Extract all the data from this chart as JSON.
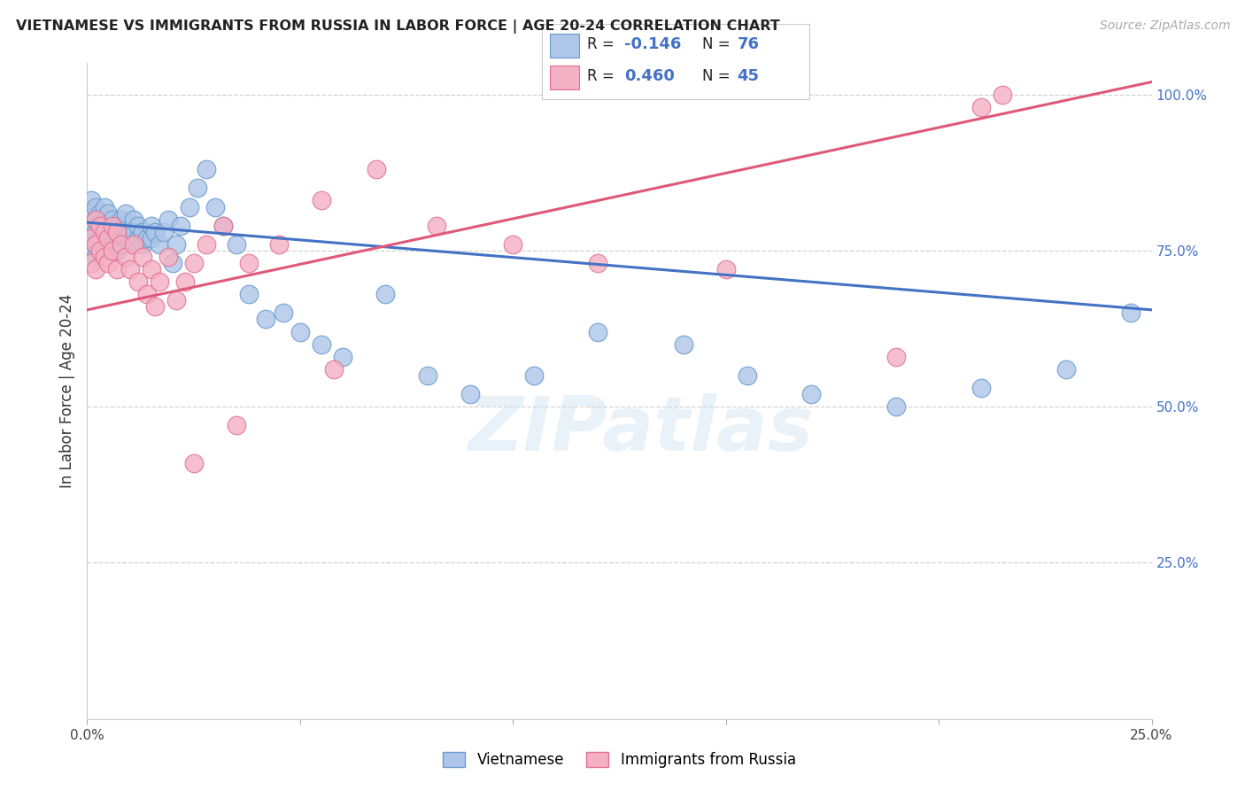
{
  "title": "VIETNAMESE VS IMMIGRANTS FROM RUSSIA IN LABOR FORCE | AGE 20-24 CORRELATION CHART",
  "source": "Source: ZipAtlas.com",
  "ylabel": "In Labor Force | Age 20-24",
  "x_min": 0.0,
  "x_max": 0.25,
  "y_min": 0.0,
  "y_max": 1.05,
  "grid_color": "#cccccc",
  "background_color": "#ffffff",
  "vietnamese_color": "#aec6e8",
  "russian_color": "#f4b0c4",
  "vietnamese_edge": "#6699cc",
  "russian_edge": "#e07090",
  "trend_blue": "#4472c4",
  "trend_pink": "#e05878",
  "legend_label_blue": "Vietnamese",
  "legend_label_pink": "Immigrants from Russia",
  "R_blue": -0.146,
  "N_blue": 76,
  "R_pink": 0.46,
  "N_pink": 45,
  "watermark": "ZIPatlas",
  "viet_x": [
    0.001,
    0.001,
    0.001,
    0.001,
    0.001,
    0.002,
    0.002,
    0.002,
    0.002,
    0.002,
    0.003,
    0.003,
    0.003,
    0.003,
    0.004,
    0.004,
    0.004,
    0.004,
    0.005,
    0.005,
    0.005,
    0.005,
    0.006,
    0.006,
    0.006,
    0.007,
    0.007,
    0.007,
    0.008,
    0.008,
    0.008,
    0.009,
    0.009,
    0.009,
    0.01,
    0.01,
    0.011,
    0.011,
    0.012,
    0.012,
    0.013,
    0.013,
    0.014,
    0.015,
    0.015,
    0.016,
    0.017,
    0.018,
    0.019,
    0.02,
    0.021,
    0.022,
    0.024,
    0.026,
    0.028,
    0.03,
    0.032,
    0.035,
    0.038,
    0.042,
    0.046,
    0.05,
    0.055,
    0.06,
    0.07,
    0.08,
    0.09,
    0.105,
    0.12,
    0.14,
    0.155,
    0.17,
    0.19,
    0.21,
    0.23,
    0.245
  ],
  "viet_y": [
    0.77,
    0.79,
    0.81,
    0.75,
    0.83,
    0.78,
    0.8,
    0.76,
    0.82,
    0.74,
    0.79,
    0.77,
    0.81,
    0.75,
    0.8,
    0.78,
    0.76,
    0.82,
    0.77,
    0.79,
    0.75,
    0.81,
    0.78,
    0.76,
    0.8,
    0.79,
    0.77,
    0.75,
    0.8,
    0.78,
    0.76,
    0.79,
    0.77,
    0.81,
    0.78,
    0.76,
    0.8,
    0.78,
    0.77,
    0.79,
    0.76,
    0.78,
    0.77,
    0.79,
    0.77,
    0.78,
    0.76,
    0.78,
    0.8,
    0.73,
    0.76,
    0.79,
    0.82,
    0.85,
    0.88,
    0.82,
    0.79,
    0.76,
    0.68,
    0.64,
    0.65,
    0.62,
    0.6,
    0.58,
    0.68,
    0.55,
    0.52,
    0.55,
    0.62,
    0.6,
    0.55,
    0.52,
    0.5,
    0.53,
    0.56,
    0.65
  ],
  "rus_x": [
    0.001,
    0.001,
    0.002,
    0.002,
    0.002,
    0.003,
    0.003,
    0.004,
    0.004,
    0.005,
    0.005,
    0.006,
    0.006,
    0.007,
    0.007,
    0.008,
    0.009,
    0.01,
    0.011,
    0.012,
    0.013,
    0.014,
    0.015,
    0.016,
    0.017,
    0.019,
    0.021,
    0.023,
    0.025,
    0.028,
    0.032,
    0.038,
    0.045,
    0.055,
    0.068,
    0.082,
    0.1,
    0.12,
    0.15,
    0.19,
    0.215,
    0.058,
    0.035,
    0.025,
    0.21
  ],
  "rus_y": [
    0.77,
    0.73,
    0.8,
    0.76,
    0.72,
    0.79,
    0.75,
    0.78,
    0.74,
    0.77,
    0.73,
    0.79,
    0.75,
    0.78,
    0.72,
    0.76,
    0.74,
    0.72,
    0.76,
    0.7,
    0.74,
    0.68,
    0.72,
    0.66,
    0.7,
    0.74,
    0.67,
    0.7,
    0.73,
    0.76,
    0.79,
    0.73,
    0.76,
    0.83,
    0.88,
    0.79,
    0.76,
    0.73,
    0.72,
    0.58,
    1.0,
    0.56,
    0.47,
    0.41,
    0.98
  ],
  "blue_line_x": [
    0.0,
    0.25
  ],
  "blue_line_y": [
    0.795,
    0.655
  ],
  "pink_line_x": [
    0.0,
    0.25
  ],
  "pink_line_y": [
    0.655,
    1.02
  ]
}
